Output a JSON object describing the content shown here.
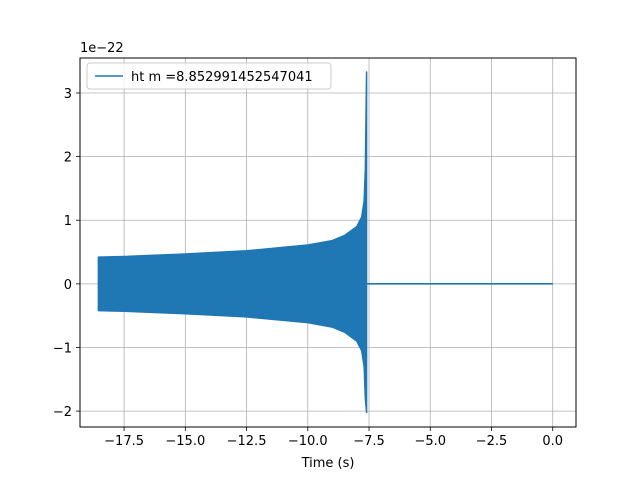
{
  "chart_data": {
    "type": "line",
    "xlabel": "Time (s)",
    "ylabel": "",
    "y_offset_text": "1e−22",
    "xlim": [
      -19.3,
      0.95
    ],
    "ylim": [
      -2.25,
      3.55
    ],
    "grid": true,
    "legend_position": "top-left",
    "x_ticks": [
      -17.5,
      -15.0,
      -12.5,
      -10.0,
      -7.5,
      -5.0,
      -2.5,
      0.0
    ],
    "x_tick_labels": [
      "−17.5",
      "−15.0",
      "−12.5",
      "−10.0",
      "−7.5",
      "−5.0",
      "−2.5",
      "0.0"
    ],
    "y_ticks": [
      -2,
      -1,
      0,
      1,
      2,
      3
    ],
    "y_tick_labels": [
      "−2",
      "−1",
      "0",
      "1",
      "2",
      "3"
    ],
    "series": [
      {
        "name": "ht m =8.852991452547041",
        "color": "#1f77b4",
        "signal_start": -18.55,
        "merger_time": -7.6,
        "end_time": 0.0,
        "envelope": {
          "x": [
            -18.55,
            -17.5,
            -15.0,
            -12.5,
            -10.0,
            -9.0,
            -8.5,
            -8.0,
            -7.8,
            -7.7,
            -7.65,
            -7.6
          ],
          "upper": [
            0.42,
            0.43,
            0.47,
            0.52,
            0.61,
            0.68,
            0.76,
            0.9,
            1.05,
            1.3,
            1.8,
            3.33
          ],
          "lower": [
            -0.42,
            -0.43,
            -0.47,
            -0.52,
            -0.61,
            -0.68,
            -0.76,
            -0.9,
            -1.05,
            -1.3,
            -1.8,
            -2.02
          ]
        }
      }
    ]
  }
}
